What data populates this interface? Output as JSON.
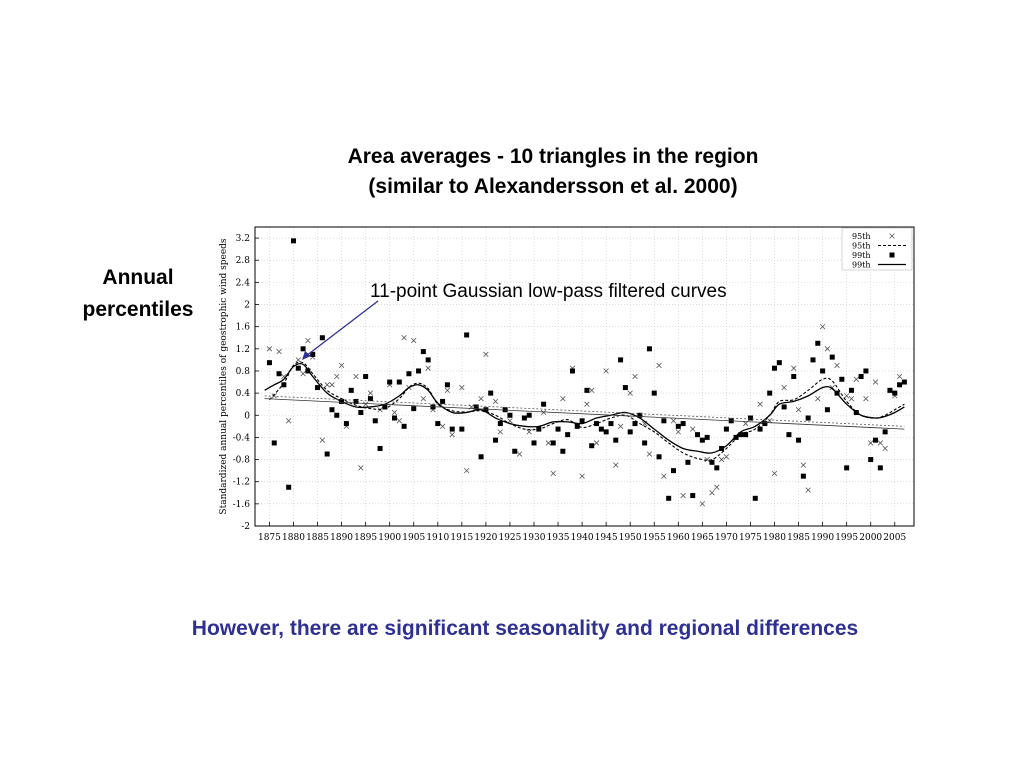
{
  "slide": {
    "title_line1": "Area averages - 10 triangles in the region",
    "title_line2": "(similar to Alexandersson et al. 2000)",
    "side_label_line1": "Annual",
    "side_label_line2": "percentiles",
    "annotation": "11-point Gaussian low-pass filtered curves",
    "footer": "However, there are significant seasonality and regional differences",
    "colors": {
      "footer_text": "#2e3192",
      "annotation_arrow": "#2e3192",
      "grid": "#c8c8c8"
    }
  },
  "chart_data": {
    "type": "scatter",
    "ylabel": "Standardized annual percentiles of geostrophic wind speeds",
    "xlabel": "",
    "xlim": [
      1872,
      2009
    ],
    "ylim": [
      -2,
      3.4
    ],
    "x_ticks": [
      1875,
      1880,
      1885,
      1890,
      1895,
      1900,
      1905,
      1910,
      1915,
      1920,
      1925,
      1930,
      1935,
      1940,
      1945,
      1950,
      1955,
      1960,
      1965,
      1970,
      1975,
      1980,
      1985,
      1990,
      1995,
      2000,
      2005
    ],
    "y_ticks": [
      "-2",
      "-1.6",
      "-1.2",
      "-0.8",
      "-0.4",
      "0",
      "0.4",
      "0.8",
      "1.2",
      "1.6",
      "2",
      "2.4",
      "2.8",
      "3.2"
    ],
    "grid": true,
    "legend_position": "top-right",
    "series": [
      {
        "name": "95th",
        "style": "x",
        "x": [
          1875,
          1876,
          1877,
          1878,
          1879,
          1881,
          1882,
          1883,
          1884,
          1886,
          1887,
          1888,
          1889,
          1890,
          1891,
          1892,
          1893,
          1894,
          1895,
          1896,
          1898,
          1899,
          1900,
          1901,
          1902,
          1903,
          1904,
          1905,
          1907,
          1908,
          1909,
          1911,
          1912,
          1913,
          1915,
          1916,
          1917,
          1919,
          1920,
          1922,
          1923,
          1925,
          1927,
          1929,
          1932,
          1933,
          1934,
          1936,
          1938,
          1940,
          1941,
          1942,
          1943,
          1945,
          1947,
          1948,
          1950,
          1951,
          1953,
          1954,
          1956,
          1957,
          1959,
          1960,
          1961,
          1963,
          1965,
          1966,
          1967,
          1968,
          1969,
          1970,
          1972,
          1974,
          1975,
          1977,
          1979,
          1980,
          1982,
          1984,
          1985,
          1986,
          1987,
          1989,
          1990,
          1991,
          1992,
          1993,
          1995,
          1996,
          1997,
          1999,
          2000,
          2001,
          2002,
          2003,
          2004,
          2005,
          2006
        ],
        "y": [
          1.2,
          0.35,
          1.15,
          0.7,
          -0.1,
          1.0,
          0.75,
          1.35,
          1.05,
          -0.45,
          0.55,
          0.55,
          0.7,
          0.9,
          -0.2,
          0.45,
          0.7,
          -0.95,
          0.2,
          0.4,
          0.1,
          0.15,
          0.55,
          0.05,
          -0.1,
          1.4,
          0.5,
          1.35,
          0.3,
          0.85,
          0.1,
          -0.2,
          0.45,
          -0.35,
          0.5,
          -1.0,
          0.15,
          0.3,
          1.1,
          0.25,
          -0.3,
          -0.1,
          -0.7,
          -0.3,
          0.05,
          -0.5,
          -1.05,
          0.3,
          0.85,
          -1.1,
          0.2,
          0.45,
          -0.5,
          0.8,
          -0.9,
          -0.2,
          0.4,
          0.7,
          -0.15,
          -0.7,
          0.9,
          -1.1,
          -0.1,
          -0.3,
          -1.45,
          -0.25,
          -1.6,
          -0.8,
          -1.4,
          -1.3,
          -0.8,
          -0.75,
          -0.4,
          -0.15,
          -0.05,
          0.2,
          -0.1,
          -1.05,
          0.5,
          0.85,
          0.1,
          -0.9,
          -1.35,
          0.3,
          1.6,
          1.2,
          0.5,
          0.9,
          0.35,
          0.3,
          0.65,
          0.3,
          -0.5,
          0.6,
          -0.5,
          -0.6,
          0.45,
          0.35,
          0.7
        ]
      },
      {
        "name": "95th",
        "style": "dashed",
        "x": [
          1875,
          1878,
          1880,
          1882,
          1884,
          1887,
          1890,
          1893,
          1896,
          1899,
          1902,
          1904,
          1906,
          1908,
          1910,
          1913,
          1916,
          1919,
          1922,
          1925,
          1928,
          1931,
          1934,
          1937,
          1940,
          1943,
          1946,
          1949,
          1952,
          1955,
          1958,
          1961,
          1964,
          1967,
          1970,
          1973,
          1976,
          1979,
          1981,
          1984,
          1987,
          1990,
          1992,
          1995,
          1998,
          2001,
          2003,
          2005,
          2007
        ],
        "y": [
          0.28,
          0.58,
          0.9,
          0.95,
          0.75,
          0.45,
          0.3,
          0.18,
          0.12,
          0.12,
          0.3,
          0.5,
          0.58,
          0.48,
          0.2,
          0.08,
          0.06,
          0.08,
          0.0,
          -0.15,
          -0.25,
          -0.25,
          -0.15,
          -0.08,
          -0.22,
          -0.15,
          -0.05,
          0.0,
          -0.15,
          -0.3,
          -0.5,
          -0.68,
          -0.78,
          -0.8,
          -0.6,
          -0.35,
          -0.25,
          0.0,
          0.25,
          0.28,
          0.45,
          0.65,
          0.62,
          0.25,
          0.0,
          -0.05,
          0.0,
          0.1,
          0.2
        ]
      },
      {
        "name": "99th",
        "style": "square",
        "x": [
          1875,
          1876,
          1877,
          1878,
          1879,
          1880,
          1881,
          1882,
          1883,
          1884,
          1885,
          1886,
          1887,
          1888,
          1889,
          1890,
          1891,
          1892,
          1893,
          1894,
          1895,
          1896,
          1897,
          1898,
          1899,
          1900,
          1901,
          1902,
          1903,
          1904,
          1905,
          1906,
          1907,
          1908,
          1909,
          1910,
          1911,
          1912,
          1913,
          1915,
          1916,
          1918,
          1919,
          1920,
          1921,
          1922,
          1923,
          1924,
          1925,
          1926,
          1928,
          1929,
          1930,
          1931,
          1932,
          1934,
          1935,
          1936,
          1937,
          1938,
          1939,
          1940,
          1941,
          1942,
          1943,
          1944,
          1945,
          1946,
          1947,
          1948,
          1949,
          1950,
          1951,
          1952,
          1953,
          1954,
          1955,
          1956,
          1957,
          1958,
          1959,
          1960,
          1961,
          1962,
          1963,
          1964,
          1965,
          1966,
          1967,
          1968,
          1969,
          1970,
          1971,
          1972,
          1973,
          1974,
          1975,
          1976,
          1977,
          1978,
          1979,
          1980,
          1981,
          1982,
          1983,
          1984,
          1985,
          1986,
          1987,
          1988,
          1989,
          1990,
          1991,
          1992,
          1993,
          1994,
          1995,
          1996,
          1997,
          1998,
          1999,
          2000,
          2001,
          2002,
          2003,
          2004,
          2005,
          2006,
          2007
        ],
        "y": [
          0.95,
          -0.5,
          0.75,
          0.55,
          -1.3,
          3.15,
          0.85,
          1.2,
          0.8,
          1.1,
          0.5,
          1.4,
          -0.7,
          0.1,
          0.0,
          0.25,
          -0.15,
          0.45,
          0.25,
          0.05,
          0.7,
          0.3,
          -0.1,
          -0.6,
          0.15,
          0.6,
          -0.05,
          0.6,
          -0.2,
          0.75,
          0.12,
          0.8,
          1.15,
          1.0,
          0.15,
          -0.15,
          0.25,
          0.55,
          -0.25,
          -0.25,
          1.45,
          0.15,
          -0.75,
          0.1,
          0.4,
          -0.45,
          -0.15,
          0.1,
          0.0,
          -0.65,
          -0.05,
          0.0,
          -0.5,
          -0.25,
          0.2,
          -0.5,
          -0.25,
          -0.65,
          -0.35,
          0.8,
          -0.2,
          -0.1,
          0.45,
          -0.55,
          -0.15,
          -0.25,
          -0.3,
          -0.15,
          -0.45,
          1.0,
          0.5,
          -0.3,
          -0.15,
          0.0,
          -0.5,
          1.2,
          0.4,
          -0.75,
          -0.1,
          -1.5,
          -1.0,
          -0.2,
          -0.15,
          -0.85,
          -1.45,
          -0.35,
          -0.45,
          -0.4,
          -0.85,
          -0.95,
          -0.6,
          -0.25,
          -0.1,
          -0.4,
          -0.35,
          -0.35,
          -0.05,
          -1.5,
          -0.25,
          -0.15,
          0.4,
          0.85,
          0.95,
          0.15,
          -0.35,
          0.7,
          -0.45,
          -1.1,
          -0.05,
          1.0,
          1.3,
          0.8,
          0.1,
          1.05,
          0.4,
          0.65,
          -0.95,
          0.45,
          0.05,
          0.7,
          0.8,
          -0.8,
          -0.45,
          -0.95,
          -0.3,
          0.45,
          0.4,
          0.55,
          0.6
        ]
      },
      {
        "name": "99th",
        "style": "solid",
        "x": [
          1874,
          1876,
          1878,
          1880,
          1882,
          1884,
          1887,
          1890,
          1893,
          1896,
          1899,
          1902,
          1904,
          1906,
          1908,
          1910,
          1913,
          1916,
          1919,
          1922,
          1925,
          1928,
          1931,
          1934,
          1937,
          1940,
          1943,
          1946,
          1949,
          1952,
          1955,
          1958,
          1961,
          1964,
          1967,
          1970,
          1973,
          1976,
          1979,
          1981,
          1984,
          1987,
          1990,
          1992,
          1995,
          1998,
          2001,
          2003,
          2005,
          2007
        ],
        "y": [
          0.45,
          0.55,
          0.65,
          0.88,
          0.92,
          0.7,
          0.4,
          0.25,
          0.15,
          0.15,
          0.2,
          0.35,
          0.5,
          0.55,
          0.45,
          0.22,
          0.05,
          0.05,
          0.1,
          -0.05,
          -0.15,
          -0.2,
          -0.2,
          -0.12,
          -0.12,
          -0.15,
          -0.05,
          0.0,
          0.05,
          -0.05,
          -0.25,
          -0.45,
          -0.6,
          -0.65,
          -0.68,
          -0.55,
          -0.3,
          -0.2,
          0.0,
          0.2,
          0.25,
          0.35,
          0.5,
          0.48,
          0.2,
          0.0,
          -0.05,
          -0.02,
          0.05,
          0.15
        ]
      },
      {
        "name": "",
        "style": "trend-dashed",
        "x": [
          1874,
          2007
        ],
        "y": [
          0.35,
          -0.2
        ]
      },
      {
        "name": "",
        "style": "trend-solid",
        "x": [
          1874,
          2007
        ],
        "y": [
          0.3,
          -0.25
        ]
      }
    ],
    "legend": [
      {
        "label": "95th",
        "style": "x"
      },
      {
        "label": "95th",
        "style": "dashed"
      },
      {
        "label": "99th",
        "style": "square"
      },
      {
        "label": "99th",
        "style": "solid"
      }
    ]
  }
}
